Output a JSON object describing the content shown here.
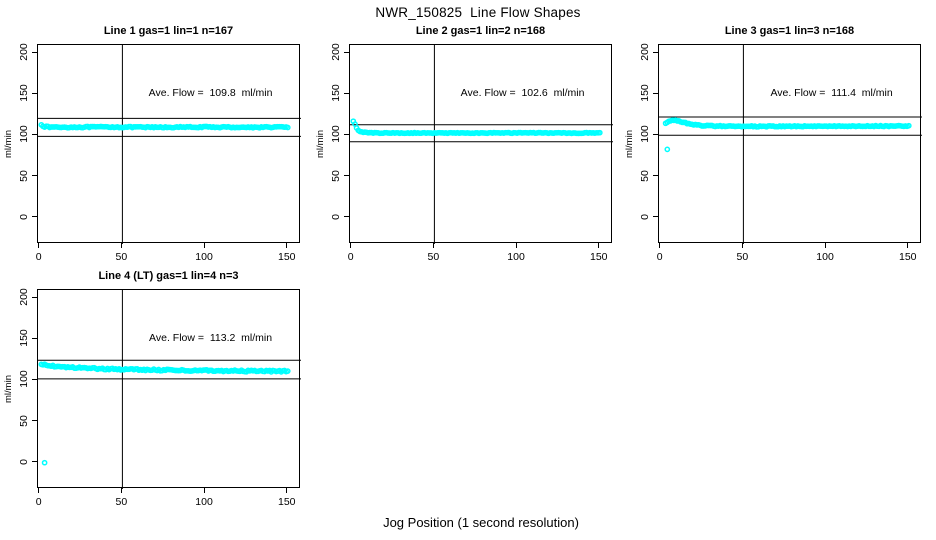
{
  "page": {
    "title": "NWR_150825  Line Flow Shapes",
    "xlabel": "Jog Position (1 second resolution)",
    "background": "#ffffff"
  },
  "chart_data": {
    "type": "scatter",
    "title": "NWR_150825  Line Flow Shapes",
    "xlabel": "Jog Position (1 second resolution)",
    "ylabel": "ml/min",
    "point_color": "#00ffff",
    "axis_color": "#000000",
    "grid": false,
    "legend": "none",
    "xlim": [
      -1,
      158
    ],
    "ylim": [
      -32,
      210
    ],
    "x_ticks": [
      0,
      50,
      100,
      150
    ],
    "y_ticks": [
      0,
      50,
      100,
      150,
      200
    ],
    "vline_x": 50,
    "ref_line_rule": "average flow plus and minus 10 percent",
    "panels": [
      {
        "title": "Line 1 gas=1 lin=1 n=167",
        "annotation": "Ave. Flow =  109.8  ml/min",
        "ave_flow_ml_min": 109.8,
        "n": 167,
        "ref_lines": [
          120.8,
          98.8
        ],
        "x_start": 1,
        "x_end": 150,
        "noise": 0.7,
        "keypoints": [
          [
            1,
            113.5
          ],
          [
            2,
            111.8
          ],
          [
            3,
            110.8
          ],
          [
            6,
            110.2
          ],
          [
            15,
            110.0
          ],
          [
            40,
            110.3
          ],
          [
            70,
            109.9
          ],
          [
            100,
            110.2
          ],
          [
            130,
            109.9
          ],
          [
            150,
            110.3
          ]
        ],
        "outliers": []
      },
      {
        "title": "Line 2 gas=1 lin=2 n=168",
        "annotation": "Ave. Flow =  102.6  ml/min",
        "ave_flow_ml_min": 102.6,
        "n": 168,
        "ref_lines": [
          112.9,
          92.3
        ],
        "x_start": 1,
        "x_end": 150,
        "noise": 0.45,
        "keypoints": [
          [
            1,
            117.0
          ],
          [
            2,
            113.5
          ],
          [
            3,
            109.5
          ],
          [
            4,
            106.0
          ],
          [
            6,
            104.0
          ],
          [
            10,
            103.2
          ],
          [
            20,
            103.0
          ],
          [
            60,
            103.0
          ],
          [
            100,
            103.1
          ],
          [
            140,
            102.9
          ],
          [
            150,
            103.4
          ]
        ],
        "outliers": []
      },
      {
        "title": "Line 3 gas=1 lin=3 n=168",
        "annotation": "Ave. Flow =  111.4  ml/min",
        "ave_flow_ml_min": 111.4,
        "n": 168,
        "ref_lines": [
          122.5,
          100.3
        ],
        "x_start": 3,
        "x_end": 150,
        "noise": 0.6,
        "keypoints": [
          [
            3,
            114.5
          ],
          [
            5,
            117.0
          ],
          [
            8,
            118.5
          ],
          [
            12,
            117.0
          ],
          [
            16,
            114.5
          ],
          [
            22,
            112.5
          ],
          [
            30,
            111.5
          ],
          [
            60,
            111.0
          ],
          [
            100,
            111.3
          ],
          [
            150,
            111.5
          ]
        ],
        "outliers": [
          [
            4,
            83
          ]
        ]
      },
      {
        "title": "Line 4 (LT) gas=1 lin=4 n=3",
        "annotation": "Ave. Flow =  113.2  ml/min",
        "ave_flow_ml_min": 113.2,
        "n": 3,
        "ref_lines": [
          124.5,
          101.9
        ],
        "x_start": 1,
        "x_end": 150,
        "noise": 1.0,
        "keypoints": [
          [
            1,
            119.5
          ],
          [
            4,
            118.5
          ],
          [
            10,
            117.2
          ],
          [
            20,
            115.8
          ],
          [
            35,
            114.5
          ],
          [
            55,
            113.3
          ],
          [
            80,
            112.4
          ],
          [
            110,
            111.8
          ],
          [
            135,
            111.2
          ],
          [
            150,
            111.2
          ]
        ],
        "outliers": [
          [
            3,
            0
          ]
        ]
      }
    ]
  }
}
